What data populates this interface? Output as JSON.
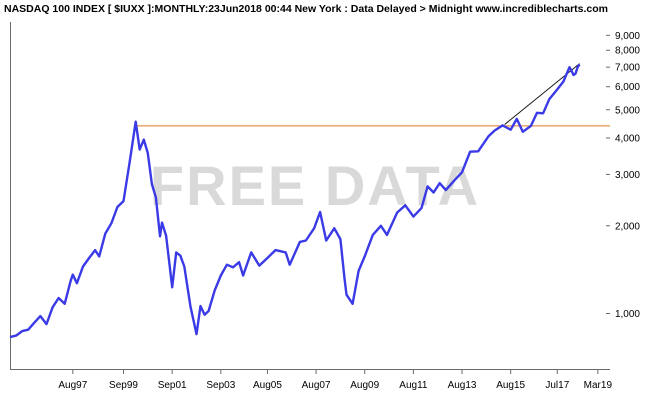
{
  "header": {
    "title": "NASDAQ 100 INDEX [ $IUXX ]:MONTHLY:23Jun2018 00:44 New York : Data Delayed > Midnight www.incrediblecharts.com"
  },
  "watermark": "FREE DATA",
  "colors": {
    "series": "#3a3ae6",
    "support_line": "#e07b1a",
    "trend_line": "#1a1a1a",
    "axis": "#6b6b6b"
  },
  "chart_data": {
    "type": "line",
    "title": "NASDAQ 100 INDEX [ $IUXX ]:MONTHLY",
    "y_scale": "log",
    "ylim": [
      640,
      10000
    ],
    "xlim": [
      "1995-01",
      "2019-09"
    ],
    "grid": false,
    "y_ticks": [
      {
        "value": 1000,
        "label": "1,000"
      },
      {
        "value": 2000,
        "label": "2,000"
      },
      {
        "value": 3000,
        "label": "3,000"
      },
      {
        "value": 4000,
        "label": "4,000"
      },
      {
        "value": 5000,
        "label": "5,000"
      },
      {
        "value": 6000,
        "label": "6,000"
      },
      {
        "value": 7000,
        "label": "7,000"
      },
      {
        "value": 8000,
        "label": "8,000"
      },
      {
        "value": 9000,
        "label": "9,000"
      }
    ],
    "x_ticks": [
      {
        "value": "1997-08",
        "label": "Aug97"
      },
      {
        "value": "1999-09",
        "label": "Sep99"
      },
      {
        "value": "2001-09",
        "label": "Sep01"
      },
      {
        "value": "2003-09",
        "label": "Sep03"
      },
      {
        "value": "2005-08",
        "label": "Aug05"
      },
      {
        "value": "2007-08",
        "label": "Aug07"
      },
      {
        "value": "2009-08",
        "label": "Aug09"
      },
      {
        "value": "2011-08",
        "label": "Aug11"
      },
      {
        "value": "2013-08",
        "label": "Aug13"
      },
      {
        "value": "2015-08",
        "label": "Aug15"
      },
      {
        "value": "2017-07",
        "label": "Jul17"
      },
      {
        "value": "2019-03",
        "label": "Mar19"
      }
    ],
    "series": [
      {
        "values": [
          [
            "1995-01",
            830
          ],
          [
            "1995-04",
            840
          ],
          [
            "1995-07",
            870
          ],
          [
            "1995-10",
            880
          ],
          [
            "1996-01",
            930
          ],
          [
            "1996-04",
            980
          ],
          [
            "1996-07",
            920
          ],
          [
            "1996-10",
            1050
          ],
          [
            "1997-01",
            1130
          ],
          [
            "1997-04",
            1080
          ],
          [
            "1997-07",
            1300
          ],
          [
            "1997-08",
            1360
          ],
          [
            "1997-10",
            1270
          ],
          [
            "1998-01",
            1450
          ],
          [
            "1998-04",
            1550
          ],
          [
            "1998-07",
            1650
          ],
          [
            "1998-09",
            1570
          ],
          [
            "1998-12",
            1880
          ],
          [
            "1999-03",
            2040
          ],
          [
            "1999-06",
            2320
          ],
          [
            "1999-09",
            2430
          ],
          [
            "1999-12",
            3300
          ],
          [
            "2000-03",
            4550
          ],
          [
            "2000-05",
            3650
          ],
          [
            "2000-07",
            3950
          ],
          [
            "2000-09",
            3550
          ],
          [
            "2000-11",
            2780
          ],
          [
            "2001-01",
            2500
          ],
          [
            "2001-03",
            1840
          ],
          [
            "2001-04",
            2050
          ],
          [
            "2001-06",
            1850
          ],
          [
            "2001-09",
            1230
          ],
          [
            "2001-11",
            1620
          ],
          [
            "2002-01",
            1580
          ],
          [
            "2002-03",
            1450
          ],
          [
            "2002-06",
            1060
          ],
          [
            "2002-09",
            850
          ],
          [
            "2002-11",
            1060
          ],
          [
            "2003-01",
            990
          ],
          [
            "2003-03",
            1020
          ],
          [
            "2003-06",
            1200
          ],
          [
            "2003-09",
            1350
          ],
          [
            "2003-12",
            1470
          ],
          [
            "2004-03",
            1440
          ],
          [
            "2004-06",
            1500
          ],
          [
            "2004-08",
            1350
          ],
          [
            "2004-12",
            1620
          ],
          [
            "2005-04",
            1460
          ],
          [
            "2005-08",
            1550
          ],
          [
            "2005-12",
            1650
          ],
          [
            "2006-05",
            1620
          ],
          [
            "2006-07",
            1470
          ],
          [
            "2006-12",
            1760
          ],
          [
            "2007-03",
            1780
          ],
          [
            "2007-07",
            1960
          ],
          [
            "2007-10",
            2230
          ],
          [
            "2008-01",
            1780
          ],
          [
            "2008-05",
            1960
          ],
          [
            "2008-08",
            1800
          ],
          [
            "2008-10",
            1320
          ],
          [
            "2008-11",
            1160
          ],
          [
            "2009-02",
            1080
          ],
          [
            "2009-05",
            1400
          ],
          [
            "2009-08",
            1570
          ],
          [
            "2009-12",
            1860
          ],
          [
            "2010-04",
            2000
          ],
          [
            "2010-07",
            1860
          ],
          [
            "2010-12",
            2220
          ],
          [
            "2011-04",
            2350
          ],
          [
            "2011-08",
            2150
          ],
          [
            "2011-12",
            2300
          ],
          [
            "2012-03",
            2730
          ],
          [
            "2012-06",
            2600
          ],
          [
            "2012-09",
            2800
          ],
          [
            "2012-12",
            2650
          ],
          [
            "2013-04",
            2850
          ],
          [
            "2013-08",
            3050
          ],
          [
            "2013-12",
            3590
          ],
          [
            "2014-04",
            3600
          ],
          [
            "2014-09",
            4050
          ],
          [
            "2014-12",
            4240
          ],
          [
            "2015-04",
            4420
          ],
          [
            "2015-08",
            4270
          ],
          [
            "2015-11",
            4650
          ],
          [
            "2016-02",
            4200
          ],
          [
            "2016-06",
            4400
          ],
          [
            "2016-09",
            4880
          ],
          [
            "2016-12",
            4860
          ],
          [
            "2017-03",
            5430
          ],
          [
            "2017-07",
            5870
          ],
          [
            "2017-10",
            6250
          ],
          [
            "2018-01",
            7000
          ],
          [
            "2018-02",
            6800
          ],
          [
            "2018-03",
            6580
          ],
          [
            "2018-04",
            6650
          ],
          [
            "2018-05",
            7000
          ],
          [
            "2018-06",
            7150
          ]
        ]
      }
    ],
    "reference_lines": [
      {
        "kind": "horizontal",
        "y": 4400,
        "from": "2000-03",
        "to": "2019-09",
        "color": "#e07b1a"
      },
      {
        "kind": "trend",
        "from": [
          "2015-05",
          4450
        ],
        "to": [
          "2018-06",
          7200
        ],
        "color": "#1a1a1a"
      }
    ]
  }
}
